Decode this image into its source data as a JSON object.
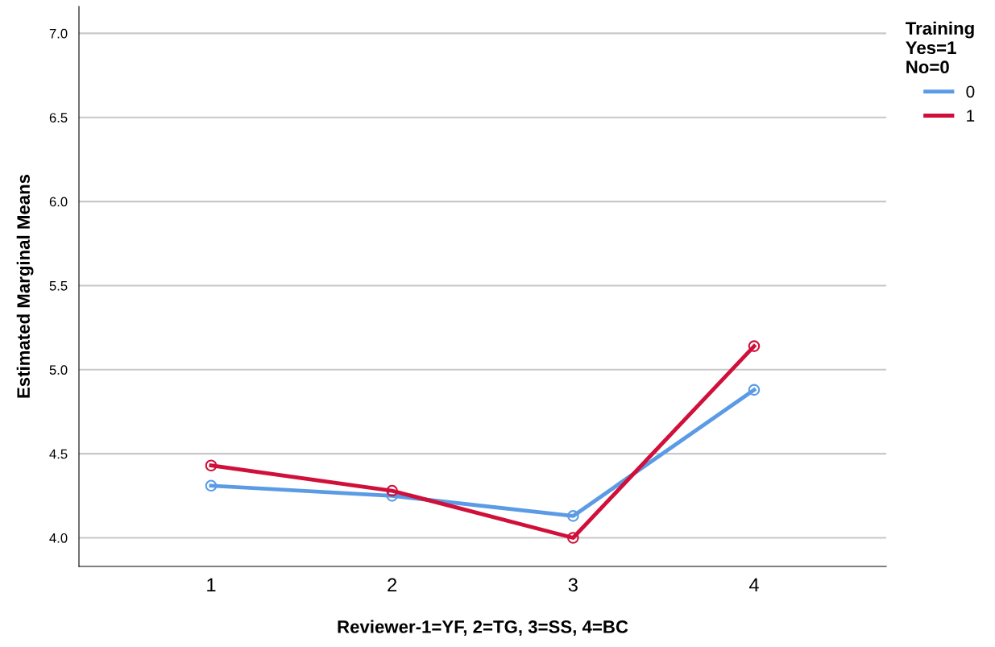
{
  "chart_data": {
    "type": "line",
    "xlabel": "Reviewer-1=YF, 2=TG, 3=SS, 4=BC",
    "ylabel": "Estimated Marginal Means",
    "legend_title": "Training\nYes=1\nNo=0",
    "categories": [
      "1",
      "2",
      "3",
      "4"
    ],
    "series": [
      {
        "name": "0",
        "color": "#5b9be6",
        "values": [
          4.31,
          4.25,
          4.13,
          4.88
        ]
      },
      {
        "name": "1",
        "color": "#d0103a",
        "values": [
          4.43,
          4.28,
          4.0,
          5.14
        ]
      }
    ],
    "ylim": [
      3.83,
      7.16
    ],
    "yticks": [
      {
        "value": 4.0,
        "label": "4.0"
      },
      {
        "value": 4.5,
        "label": "4.5"
      },
      {
        "value": 5.0,
        "label": "5.0"
      },
      {
        "value": 5.5,
        "label": "5.5"
      },
      {
        "value": 6.0,
        "label": "6.0"
      },
      {
        "value": 6.5,
        "label": "6.5"
      },
      {
        "value": 7.0,
        "label": "7.0"
      }
    ],
    "grid": "y",
    "legend": "top right",
    "marker": "circle",
    "line_style": "solid"
  }
}
